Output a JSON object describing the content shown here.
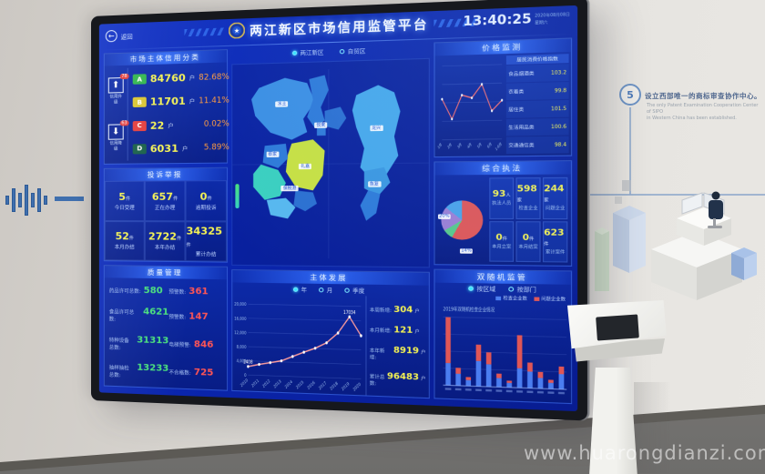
{
  "photo": {
    "watermark": "www.huarongdianzi.com",
    "wall": {
      "step_number": "5",
      "heading": "设立西部唯一的商标审查协作中心。",
      "caption_line1": "The only Patent Examination Cooperation Center of SIPO",
      "caption_line2": "in Western China has been established."
    }
  },
  "screen": {
    "back_label": "返回",
    "title": "两江新区市场信用监管平台",
    "clock": {
      "time": "13:40:25",
      "date": "2020年08月08日",
      "weekday": "星期六"
    },
    "region_tabs": [
      {
        "label": "两江新区"
      },
      {
        "label": "自贸区"
      }
    ],
    "credit": {
      "title": "市场主体信用分类",
      "up": {
        "badge": "78",
        "label": "信用升级"
      },
      "down": {
        "badge": "63",
        "label": "信用降级"
      },
      "rows": [
        {
          "grade": "A",
          "count": "84760",
          "unit": "户",
          "pct": "82.68%",
          "color": "#2fb54b"
        },
        {
          "grade": "B",
          "count": "11701",
          "unit": "户",
          "pct": "11.41%",
          "color": "#d9c42e"
        },
        {
          "grade": "C",
          "count": "22",
          "unit": "户",
          "pct": "0.02%",
          "color": "#e23b3b"
        },
        {
          "grade": "D",
          "count": "6031",
          "unit": "户",
          "pct": "5.89%",
          "color": "#155e46"
        }
      ]
    },
    "complaints": {
      "title": "投诉举报",
      "cells": [
        {
          "value": "5",
          "unit": "件",
          "label": "今日受理"
        },
        {
          "value": "657",
          "unit": "件",
          "label": "正在办理"
        },
        {
          "value": "0",
          "unit": "件",
          "label": "逾期投诉"
        },
        {
          "value": "52",
          "unit": "件",
          "label": "本月办结"
        },
        {
          "value": "2722",
          "unit": "件",
          "label": "本年办结"
        },
        {
          "value": "34325",
          "unit": "件",
          "label": "累计办结"
        }
      ]
    },
    "quality": {
      "title": "质量管理",
      "rows": [
        {
          "label": "药品许可总数:",
          "value": "580",
          "warn_label": "预警数:",
          "warn_value": "361"
        },
        {
          "label": "食品许可总数:",
          "value": "4621",
          "warn_label": "预警数:",
          "warn_value": "147"
        },
        {
          "label": "特种设备总数:",
          "value": "31313",
          "warn_label": "电梯预警:",
          "warn_value": "846"
        },
        {
          "label": "抽样抽检总数:",
          "value": "13233",
          "warn_label": "不合格数:",
          "warn_value": "725"
        }
      ]
    },
    "map": {
      "labels": [
        "水土",
        "悦来",
        "龙兴",
        "鱼复",
        "蔡家",
        "礼嘉",
        "保税港"
      ]
    },
    "development": {
      "title": "主体发展",
      "legend": [
        "年",
        "月",
        "季度"
      ],
      "chart": {
        "type": "line",
        "x": [
          "2010",
          "2011",
          "2012",
          "2013",
          "2014",
          "2015",
          "2016",
          "2017",
          "2018",
          "2019",
          "2020"
        ],
        "values": [
          2408,
          3100,
          3700,
          4300,
          5600,
          6900,
          8100,
          9700,
          12500,
          17034,
          11900
        ],
        "ylim": [
          0,
          20000
        ],
        "yticks": [
          "20,000",
          "16,000",
          "12,000",
          "8,000",
          "4,000",
          "0"
        ],
        "point_labels": [
          {
            "index": 0,
            "text": "2408"
          },
          {
            "index": 9,
            "text": "17034"
          }
        ]
      },
      "stats": [
        {
          "label": "本周新增:",
          "value": "304",
          "unit": "户"
        },
        {
          "label": "本月新增:",
          "value": "121",
          "unit": "户"
        },
        {
          "label": "本年新增:",
          "value": "8919",
          "unit": "户"
        },
        {
          "label": "累计总数:",
          "value": "96483",
          "unit": "户"
        }
      ]
    },
    "price": {
      "title": "价格监测",
      "chart": {
        "type": "line",
        "x": [
          "1月",
          "2月",
          "3月",
          "4月",
          "5月",
          "6月",
          "1-6月"
        ],
        "values": [
          55,
          28,
          60,
          56,
          74,
          38,
          52
        ],
        "ylim": [
          0,
          100
        ]
      },
      "list": {
        "header": "居民消费价格指数",
        "rows": [
          {
            "name": "食品烟酒类",
            "value": "103.2"
          },
          {
            "name": "衣着类",
            "value": "99.8"
          },
          {
            "name": "居住类",
            "value": "101.5"
          },
          {
            "name": "生活用品类",
            "value": "100.6"
          },
          {
            "name": "交通通信类",
            "value": "98.4"
          }
        ]
      }
    },
    "enforcement": {
      "title": "综合执法",
      "pie": {
        "type": "pie",
        "slices": [
          {
            "value": 58,
            "color": "#e05656"
          },
          {
            "value": 8,
            "color": "#58c98a"
          },
          {
            "value": 20,
            "color": "#9b7fd4"
          },
          {
            "value": 14,
            "color": "#4aa3e8"
          }
        ],
        "tags": [
          "20%",
          "14%"
        ]
      },
      "stats": [
        {
          "value": "93",
          "unit": "人",
          "label": "执法人员"
        },
        {
          "value": "598",
          "unit": "家",
          "label": "检查企业"
        },
        {
          "value": "244",
          "unit": "家",
          "label": "问题企业"
        },
        {
          "value": "0",
          "unit": "件",
          "label": "本月立案"
        },
        {
          "value": "0",
          "unit": "件",
          "label": "本月结案"
        },
        {
          "value": "623",
          "unit": "件",
          "label": "累计案件"
        }
      ]
    },
    "random": {
      "title": "双随机监管",
      "options": [
        "按区域",
        "按部门"
      ],
      "legend": [
        {
          "label": "检查企业数",
          "color": "#4a7df0"
        },
        {
          "label": "问题企业数",
          "color": "#e05656"
        }
      ],
      "note": "2019年双随机检查企业情况",
      "chart": {
        "type": "bar",
        "series": [
          {
            "name": "检查企业数",
            "values": [
              30,
              16,
              8,
              34,
              30,
              12,
              6,
              26,
              22,
              14,
              8,
              20
            ]
          },
          {
            "name": "问题企业数",
            "values": [
              62,
              8,
              4,
              22,
              16,
              6,
              3,
              44,
              12,
              8,
              4,
              10
            ]
          }
        ]
      }
    }
  }
}
